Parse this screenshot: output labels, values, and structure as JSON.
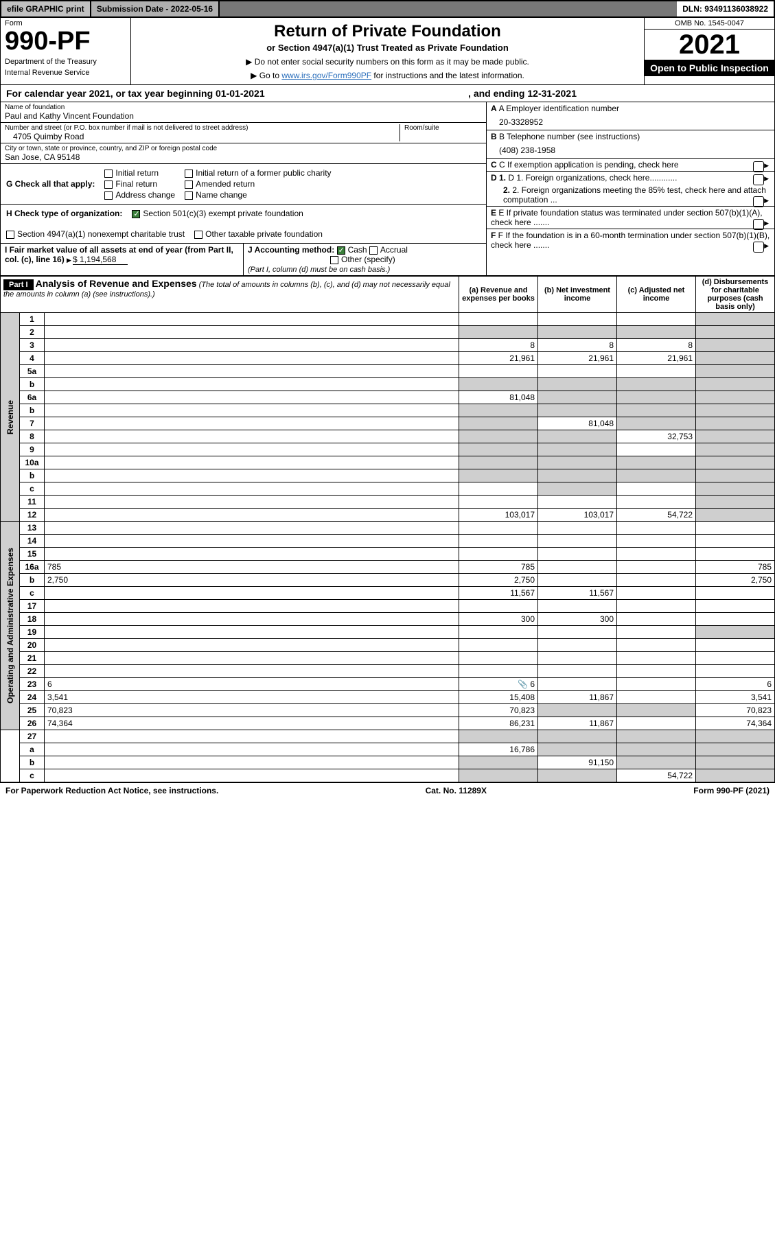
{
  "top": {
    "efile": "efile GRAPHIC print",
    "subdate_label": "Submission Date - 2022-05-16",
    "dln": "DLN: 93491136038922"
  },
  "form": {
    "word": "Form",
    "number": "990-PF",
    "dept1": "Department of the Treasury",
    "dept2": "Internal Revenue Service"
  },
  "title": {
    "main": "Return of Private Foundation",
    "sub": "or Section 4947(a)(1) Trust Treated as Private Foundation",
    "instr1": "▶ Do not enter social security numbers on this form as it may be made public.",
    "instr2_pre": "▶ Go to ",
    "instr2_link": "www.irs.gov/Form990PF",
    "instr2_post": " for instructions and the latest information."
  },
  "yearbox": {
    "omb": "OMB No. 1545-0047",
    "year": "2021",
    "open": "Open to Public Inspection"
  },
  "period": {
    "lead": "For calendar year 2021, or tax year beginning 01-01-2021",
    "end": ", and ending 12-31-2021"
  },
  "left": {
    "name_label": "Name of foundation",
    "name": "Paul and Kathy Vincent Foundation",
    "addr_label": "Number and street (or P.O. box number if mail is not delivered to street address)",
    "addr": "4705 Quimby Road",
    "room_label": "Room/suite",
    "city_label": "City or town, state or province, country, and ZIP or foreign postal code",
    "city": "San Jose, CA  95148"
  },
  "right": {
    "A_label": "A Employer identification number",
    "A_value": "20-3328952",
    "B_label": "B Telephone number (see instructions)",
    "B_value": "(408) 238-1958",
    "C_label": "C If exemption application is pending, check here",
    "D1_label": "D 1. Foreign organizations, check here............",
    "D2_label": "2. Foreign organizations meeting the 85% test, check here and attach computation ...",
    "E_label": "E If private foundation status was terminated under section 507(b)(1)(A), check here .......",
    "F_label": "F If the foundation is in a 60-month termination under section 507(b)(1)(B), check here ......."
  },
  "g": {
    "lead": "G Check all that apply:",
    "opts": [
      "Initial return",
      "Final return",
      "Address change",
      "Initial return of a former public charity",
      "Amended return",
      "Name change"
    ]
  },
  "h": {
    "lead": "H Check type of organization:",
    "opt1": "Section 501(c)(3) exempt private foundation",
    "opt2": "Section 4947(a)(1) nonexempt charitable trust",
    "opt3": "Other taxable private foundation"
  },
  "i": {
    "lead": "I Fair market value of all assets at end of year (from Part II, col. (c), line 16)",
    "value": "$  1,194,568"
  },
  "j": {
    "lead": "J Accounting method:",
    "cash": "Cash",
    "accrual": "Accrual",
    "other": "Other (specify)",
    "note": "(Part I, column (d) must be on cash basis.)"
  },
  "part1": {
    "label": "Part I",
    "title": "Analysis of Revenue and Expenses",
    "note": "(The total of amounts in columns (b), (c), and (d) may not necessarily equal the amounts in column (a) (see instructions).)",
    "col_a": "(a) Revenue and expenses per books",
    "col_b": "(b) Net investment income",
    "col_c": "(c) Adjusted net income",
    "col_d": "(d) Disbursements for charitable purposes (cash basis only)"
  },
  "vert": {
    "revenue": "Revenue",
    "expenses": "Operating and Administrative Expenses"
  },
  "rows": [
    {
      "n": "1",
      "d": "",
      "a": "",
      "b": "",
      "c": "",
      "dgrey": true
    },
    {
      "n": "2",
      "d": "",
      "a": "",
      "b": "",
      "c": "",
      "agrey": true,
      "bgrey": true,
      "cgrey": true,
      "dgrey": true
    },
    {
      "n": "3",
      "d": "",
      "a": "8",
      "b": "8",
      "c": "8",
      "dgrey": true
    },
    {
      "n": "4",
      "d": "",
      "a": "21,961",
      "b": "21,961",
      "c": "21,961",
      "dgrey": true
    },
    {
      "n": "5a",
      "d": "",
      "a": "",
      "b": "",
      "c": "",
      "dgrey": true
    },
    {
      "n": "b",
      "d": "",
      "a": "",
      "b": "",
      "c": "",
      "agrey": true,
      "bgrey": true,
      "cgrey": true,
      "dgrey": true
    },
    {
      "n": "6a",
      "d": "",
      "a": "81,048",
      "b": "",
      "c": "",
      "bgrey": true,
      "cgrey": true,
      "dgrey": true
    },
    {
      "n": "b",
      "d": "",
      "a": "",
      "b": "",
      "c": "",
      "agrey": true,
      "bgrey": true,
      "cgrey": true,
      "dgrey": true
    },
    {
      "n": "7",
      "d": "",
      "a": "",
      "b": "81,048",
      "c": "",
      "agrey": true,
      "cgrey": true,
      "dgrey": true
    },
    {
      "n": "8",
      "d": "",
      "a": "",
      "b": "",
      "c": "32,753",
      "agrey": true,
      "bgrey": true,
      "dgrey": true
    },
    {
      "n": "9",
      "d": "",
      "a": "",
      "b": "",
      "c": "",
      "agrey": true,
      "bgrey": true,
      "dgrey": true
    },
    {
      "n": "10a",
      "d": "",
      "a": "",
      "b": "",
      "c": "",
      "agrey": true,
      "bgrey": true,
      "cgrey": true,
      "dgrey": true
    },
    {
      "n": "b",
      "d": "",
      "a": "",
      "b": "",
      "c": "",
      "agrey": true,
      "bgrey": true,
      "cgrey": true,
      "dgrey": true
    },
    {
      "n": "c",
      "d": "",
      "a": "",
      "b": "",
      "c": "",
      "bgrey": true,
      "dgrey": true
    },
    {
      "n": "11",
      "d": "",
      "a": "",
      "b": "",
      "c": "",
      "dgrey": true
    },
    {
      "n": "12",
      "d": "",
      "a": "103,017",
      "b": "103,017",
      "c": "54,722",
      "dgrey": true
    },
    {
      "n": "13",
      "d": "",
      "a": "",
      "b": "",
      "c": ""
    },
    {
      "n": "14",
      "d": "",
      "a": "",
      "b": "",
      "c": ""
    },
    {
      "n": "15",
      "d": "",
      "a": "",
      "b": "",
      "c": ""
    },
    {
      "n": "16a",
      "d": "785",
      "a": "785",
      "b": "",
      "c": ""
    },
    {
      "n": "b",
      "d": "2,750",
      "a": "2,750",
      "b": "",
      "c": ""
    },
    {
      "n": "c",
      "d": "",
      "a": "11,567",
      "b": "11,567",
      "c": ""
    },
    {
      "n": "17",
      "d": "",
      "a": "",
      "b": "",
      "c": ""
    },
    {
      "n": "18",
      "d": "",
      "a": "300",
      "b": "300",
      "c": ""
    },
    {
      "n": "19",
      "d": "",
      "a": "",
      "b": "",
      "c": "",
      "dgrey": true
    },
    {
      "n": "20",
      "d": "",
      "a": "",
      "b": "",
      "c": ""
    },
    {
      "n": "21",
      "d": "",
      "a": "",
      "b": "",
      "c": ""
    },
    {
      "n": "22",
      "d": "",
      "a": "",
      "b": "",
      "c": ""
    },
    {
      "n": "23",
      "d": "6",
      "a": "6",
      "b": "",
      "c": "",
      "aicon": "📎"
    },
    {
      "n": "24",
      "d": "3,541",
      "a": "15,408",
      "b": "11,867",
      "c": ""
    },
    {
      "n": "25",
      "d": "70,823",
      "a": "70,823",
      "b": "",
      "c": "",
      "bgrey": true,
      "cgrey": true
    },
    {
      "n": "26",
      "d": "74,364",
      "a": "86,231",
      "b": "11,867",
      "c": ""
    },
    {
      "n": "27",
      "d": "",
      "a": "",
      "b": "",
      "c": "",
      "agrey": true,
      "bgrey": true,
      "cgrey": true,
      "dgrey": true
    },
    {
      "n": "a",
      "d": "",
      "a": "16,786",
      "b": "",
      "c": "",
      "bgrey": true,
      "cgrey": true,
      "dgrey": true
    },
    {
      "n": "b",
      "d": "",
      "a": "",
      "b": "91,150",
      "c": "",
      "agrey": true,
      "cgrey": true,
      "dgrey": true
    },
    {
      "n": "c",
      "d": "",
      "a": "",
      "b": "",
      "c": "54,722",
      "agrey": true,
      "bgrey": true,
      "dgrey": true
    }
  ],
  "footer": {
    "left": "For Paperwork Reduction Act Notice, see instructions.",
    "mid": "Cat. No. 11289X",
    "right": "Form 990-PF (2021)"
  }
}
